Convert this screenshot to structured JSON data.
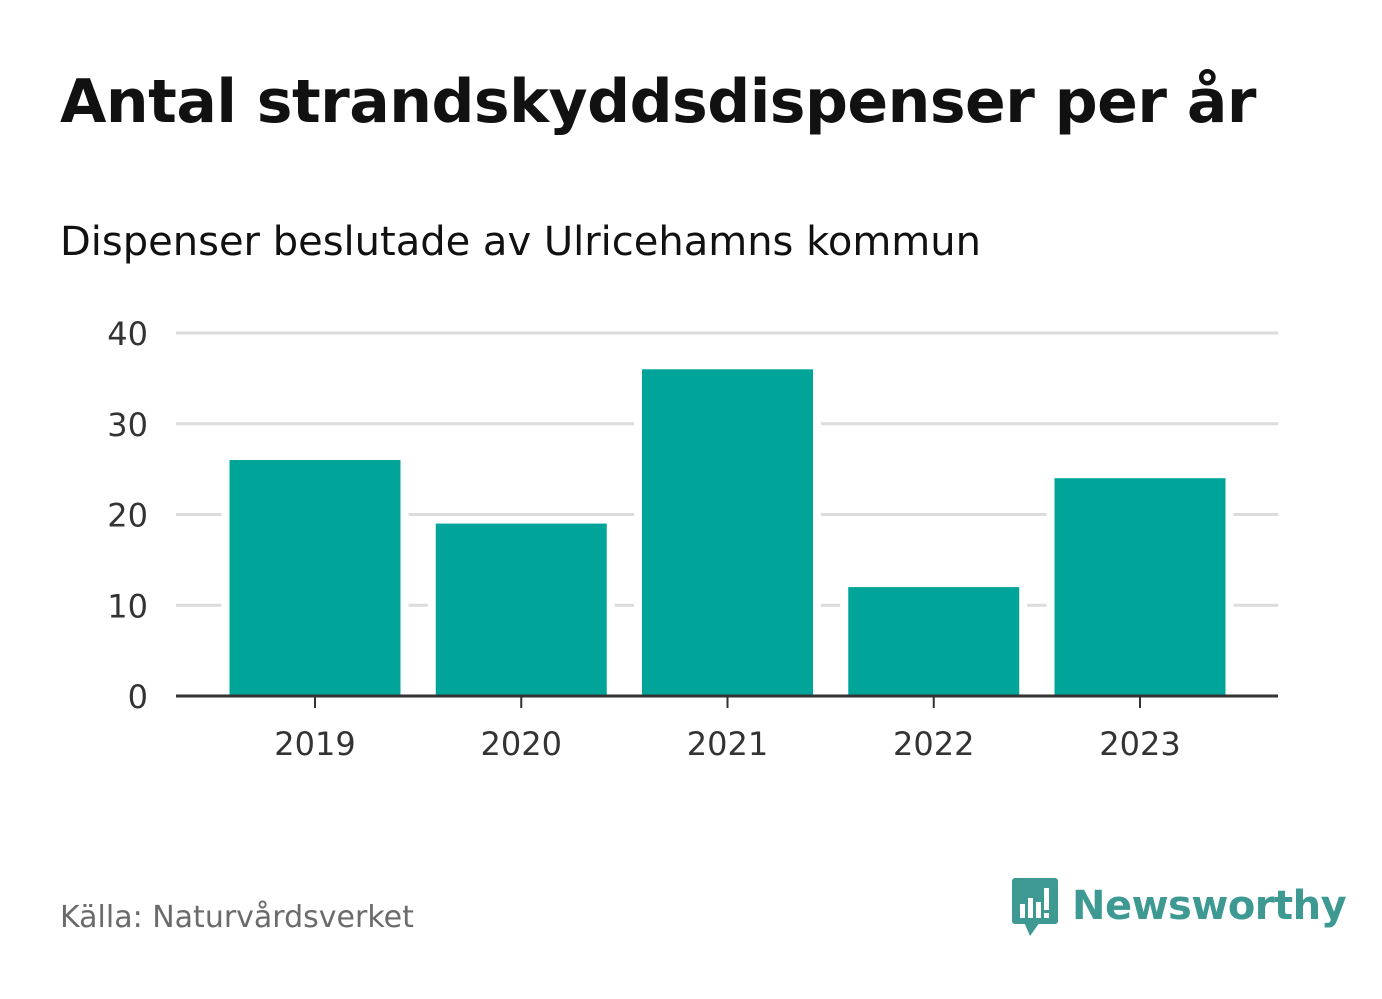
{
  "header": {
    "title": "Antal strandskyddsdispenser per år",
    "subtitle": "Dispenser beslutade av Ulricehamns kommun"
  },
  "chart_data": {
    "type": "bar",
    "title": "Antal strandskyddsdispenser per år",
    "subtitle": "Dispenser beslutade av Ulricehamns kommun",
    "categories": [
      "2019",
      "2020",
      "2021",
      "2022",
      "2023"
    ],
    "values": [
      26,
      19,
      36,
      12,
      24
    ],
    "xlabel": "",
    "ylabel": "",
    "ylim": [
      0,
      40
    ],
    "yticks": [
      0,
      10,
      20,
      30,
      40
    ],
    "grid": true,
    "legend": "none"
  },
  "footer": {
    "source": "Källa: Naturvårdsverket",
    "brand": "Newsworthy"
  },
  "colors": {
    "bar": "#00a499",
    "grid": "#dcdcdc",
    "axis": "#333333",
    "text": "#111111",
    "source": "#6b6b6b",
    "brand": "#3d9992"
  },
  "icons": {
    "brand_logo": "newsworthy-logo-icon"
  }
}
